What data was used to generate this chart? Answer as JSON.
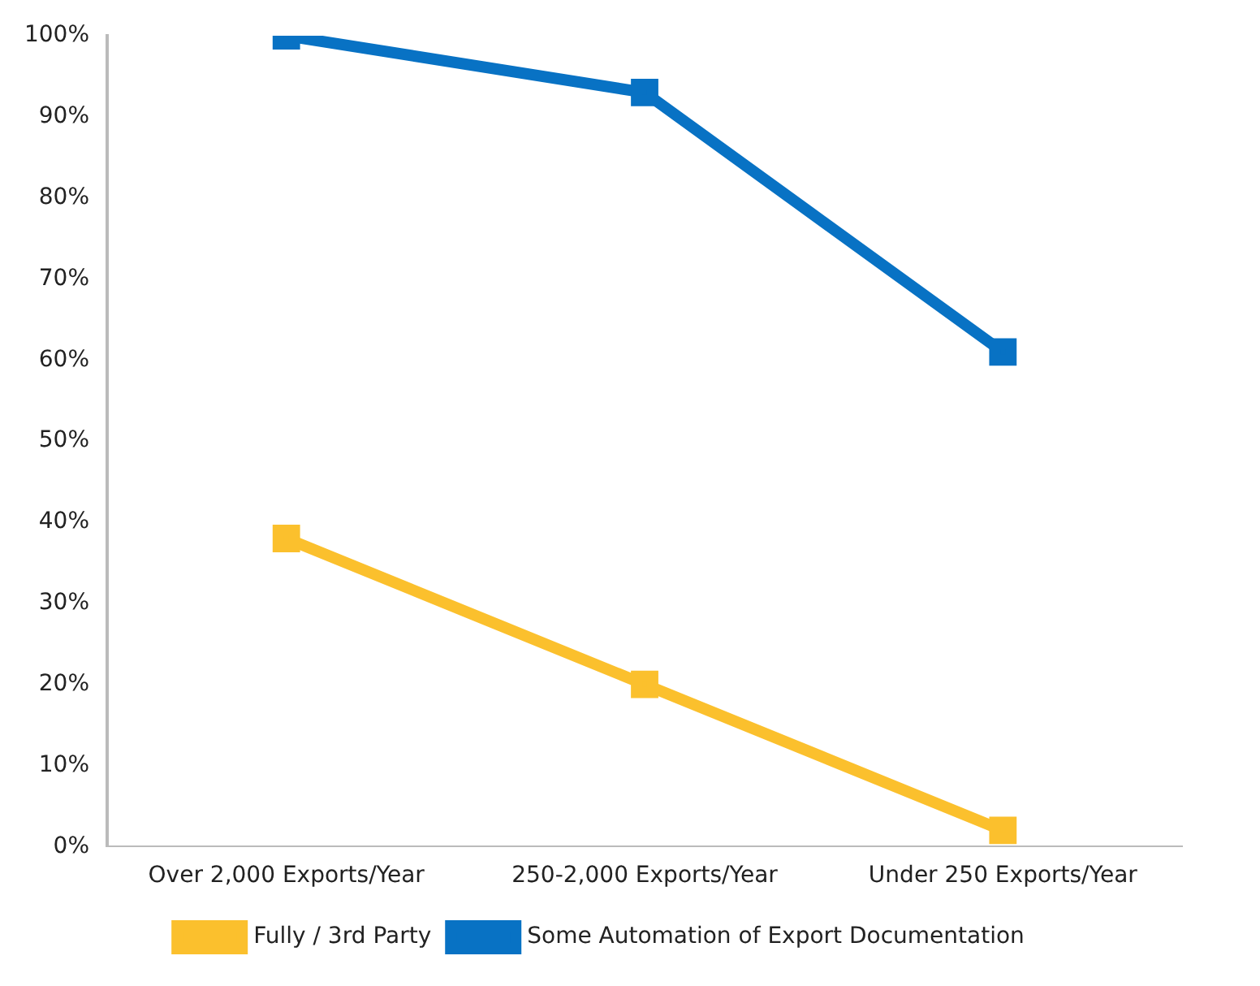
{
  "chart_data": {
    "type": "line",
    "categories": [
      "Over 2,000 Exports/Year",
      "250-2,000 Exports/Year",
      "Under 250 Exports/Year"
    ],
    "series": [
      {
        "name": "Fully / 3rd Party",
        "color": "#fbc02d",
        "values": [
          38,
          20,
          2
        ]
      },
      {
        "name": "Some Automation of Export Documentation",
        "color": "#0872c4",
        "values": [
          100,
          93,
          61
        ]
      }
    ],
    "ylim": [
      0,
      100
    ],
    "yticks": [
      {
        "value": 0,
        "label": "0%"
      },
      {
        "value": 10,
        "label": "10%"
      },
      {
        "value": 20,
        "label": "20%"
      },
      {
        "value": 30,
        "label": "30%"
      },
      {
        "value": 40,
        "label": "40%"
      },
      {
        "value": 50,
        "label": "50%"
      },
      {
        "value": 60,
        "label": "60%"
      },
      {
        "value": 70,
        "label": "70%"
      },
      {
        "value": 80,
        "label": "80%"
      },
      {
        "value": 90,
        "label": "90%"
      },
      {
        "value": 100,
        "label": "100%"
      }
    ],
    "grid": false,
    "legend": "bottom",
    "marker": "square",
    "line_style": "solid"
  }
}
